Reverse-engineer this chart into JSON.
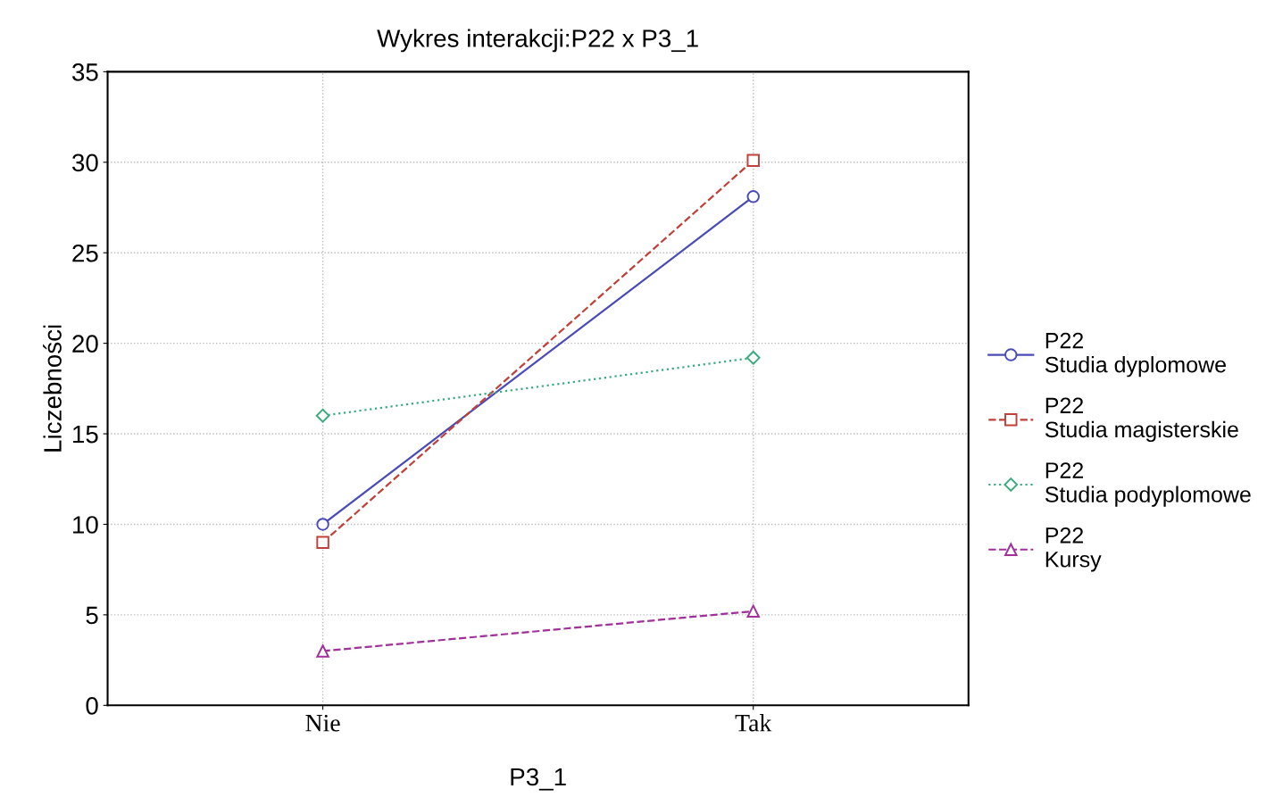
{
  "chart_data": {
    "type": "line",
    "title": "Wykres interakcji:P22 x P3_1",
    "xlabel": "P3_1",
    "ylabel": "Liczebności",
    "categories": [
      "Nie",
      "Tak"
    ],
    "series": [
      {
        "name": "P22\nStudia dyplomowe",
        "color": "#4a4ab8",
        "values": [
          10,
          28.1
        ],
        "marker": "circle",
        "line_style": "solid"
      },
      {
        "name": "P22\nStudia magisterskie",
        "color": "#c0403a",
        "values": [
          9,
          30.1
        ],
        "marker": "square",
        "line_style": "dashed"
      },
      {
        "name": "P22\nStudia podyplomowe",
        "color": "#3aaa80",
        "values": [
          16,
          19.2
        ],
        "marker": "diamond",
        "line_style": "dotted"
      },
      {
        "name": "P22\nKursy",
        "color": "#a0309a",
        "values": [
          3,
          5.2
        ],
        "marker": "triangle",
        "line_style": "dashed"
      }
    ],
    "ylim": [
      0,
      35
    ],
    "yticks": [
      0,
      5,
      10,
      15,
      20,
      25,
      30,
      35
    ],
    "grid": true,
    "legend": "right"
  }
}
